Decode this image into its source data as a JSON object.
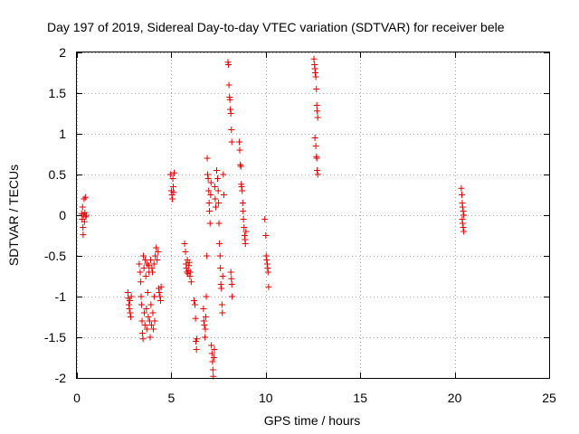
{
  "chart_data": {
    "type": "scatter",
    "title": "Day 197 of 2019, Sidereal Day-to-day VTEC variation (SDTVAR) for receiver bele",
    "xlabel": "GPS time / hours",
    "ylabel": "SDTVAR / TECUs",
    "xlim": [
      0,
      25
    ],
    "ylim": [
      -2,
      2
    ],
    "xticks": [
      0,
      5,
      10,
      15,
      20,
      25
    ],
    "yticks": [
      -2,
      -1.5,
      -1,
      -0.5,
      0,
      0.5,
      1,
      1.5,
      2
    ],
    "xtick_labels": [
      "0",
      "5",
      "10",
      "15",
      "20",
      "25"
    ],
    "ytick_labels": [
      "-2",
      "-1.5",
      "-1",
      "-0.5",
      "0",
      "0.5",
      "1",
      "1.5",
      "2"
    ],
    "grid": true,
    "marker": "+",
    "series": [
      {
        "name": "SDTVAR",
        "color": "#e00000",
        "points": [
          [
            0.25,
            0.02
          ],
          [
            0.28,
            -0.05
          ],
          [
            0.3,
            0.1
          ],
          [
            0.32,
            -0.15
          ],
          [
            0.33,
            -0.24
          ],
          [
            0.35,
            0.0
          ],
          [
            0.38,
            0.2
          ],
          [
            0.4,
            -0.08
          ],
          [
            0.42,
            0.03
          ],
          [
            0.45,
            0.22
          ],
          [
            0.47,
            -0.02
          ],
          [
            0.5,
            0.0
          ],
          [
            2.7,
            -0.95
          ],
          [
            2.72,
            -1.02
          ],
          [
            2.75,
            -1.1
          ],
          [
            2.78,
            -1.15
          ],
          [
            2.8,
            -1.05
          ],
          [
            2.82,
            -1.2
          ],
          [
            2.85,
            -1.25
          ],
          [
            2.88,
            -1.0
          ],
          [
            3.3,
            -0.6
          ],
          [
            3.35,
            -0.7
          ],
          [
            3.38,
            -0.82
          ],
          [
            3.4,
            -1.0
          ],
          [
            3.42,
            -1.1
          ],
          [
            3.45,
            -1.3
          ],
          [
            3.47,
            -1.45
          ],
          [
            3.5,
            -1.52
          ],
          [
            3.52,
            -0.5
          ],
          [
            3.55,
            -0.65
          ],
          [
            3.57,
            -1.2
          ],
          [
            3.6,
            -1.35
          ],
          [
            3.62,
            -0.55
          ],
          [
            3.65,
            -0.75
          ],
          [
            3.68,
            -1.15
          ],
          [
            3.7,
            -1.4
          ],
          [
            3.72,
            -0.6
          ],
          [
            3.75,
            -0.95
          ],
          [
            3.78,
            -1.25
          ],
          [
            3.8,
            -0.62
          ],
          [
            3.82,
            -0.7
          ],
          [
            3.85,
            -1.3
          ],
          [
            3.88,
            -1.5
          ],
          [
            3.9,
            -0.55
          ],
          [
            3.92,
            -1.1
          ],
          [
            3.95,
            -1.35
          ],
          [
            3.97,
            -0.65
          ],
          [
            4.0,
            -0.7
          ],
          [
            4.02,
            -1.2
          ],
          [
            4.05,
            -1.4
          ],
          [
            4.08,
            -0.6
          ],
          [
            4.1,
            -1.0
          ],
          [
            4.12,
            -1.3
          ],
          [
            4.15,
            -0.5
          ],
          [
            4.2,
            -0.4
          ],
          [
            4.25,
            -0.55
          ],
          [
            4.3,
            -0.45
          ],
          [
            4.33,
            -0.9
          ],
          [
            4.36,
            -0.95
          ],
          [
            4.4,
            -1.0
          ],
          [
            4.43,
            -1.05
          ],
          [
            4.46,
            -0.88
          ],
          [
            4.95,
            0.5
          ],
          [
            5.0,
            0.3
          ],
          [
            5.03,
            0.25
          ],
          [
            5.05,
            0.2
          ],
          [
            5.08,
            0.45
          ],
          [
            5.1,
            0.35
          ],
          [
            5.12,
            0.28
          ],
          [
            5.15,
            0.52
          ],
          [
            5.7,
            -0.35
          ],
          [
            5.75,
            -0.45
          ],
          [
            5.78,
            -0.6
          ],
          [
            5.8,
            -0.65
          ],
          [
            5.83,
            -0.7
          ],
          [
            5.85,
            -0.55
          ],
          [
            5.88,
            -0.72
          ],
          [
            5.9,
            -0.68
          ],
          [
            5.93,
            -0.62
          ],
          [
            5.95,
            -0.58
          ],
          [
            5.98,
            -0.75
          ],
          [
            6.0,
            -0.7
          ],
          [
            6.05,
            -0.82
          ],
          [
            6.2,
            -1.05
          ],
          [
            6.25,
            -1.1
          ],
          [
            6.28,
            -1.27
          ],
          [
            6.3,
            -1.55
          ],
          [
            6.33,
            -1.65
          ],
          [
            6.35,
            -1.52
          ],
          [
            6.7,
            -1.15
          ],
          [
            6.72,
            -1.3
          ],
          [
            6.75,
            -1.35
          ],
          [
            6.78,
            -1.5
          ],
          [
            6.8,
            -1.4
          ],
          [
            6.82,
            -1.25
          ],
          [
            6.85,
            -1.0
          ],
          [
            6.88,
            -0.5
          ],
          [
            6.9,
            0.7
          ],
          [
            6.92,
            0.5
          ],
          [
            6.95,
            0.45
          ],
          [
            6.98,
            0.3
          ],
          [
            7.0,
            0.15
          ],
          [
            7.02,
            0.05
          ],
          [
            7.05,
            -0.1
          ],
          [
            7.08,
            0.25
          ],
          [
            7.1,
            0.4
          ],
          [
            7.12,
            -1.6
          ],
          [
            7.15,
            -1.7
          ],
          [
            7.18,
            -1.8
          ],
          [
            7.2,
            -1.9
          ],
          [
            7.22,
            -1.98
          ],
          [
            7.25,
            -1.75
          ],
          [
            7.28,
            -1.65
          ],
          [
            7.3,
            0.35
          ],
          [
            7.32,
            0.2
          ],
          [
            7.35,
            0.1
          ],
          [
            7.4,
            0.55
          ],
          [
            7.45,
            0.45
          ],
          [
            7.48,
            0.3
          ],
          [
            7.5,
            0.15
          ],
          [
            7.52,
            -0.1
          ],
          [
            7.55,
            -0.35
          ],
          [
            7.58,
            -0.5
          ],
          [
            7.6,
            -0.65
          ],
          [
            7.62,
            -0.85
          ],
          [
            7.65,
            -0.9
          ],
          [
            7.68,
            -1.1
          ],
          [
            7.7,
            -1.2
          ],
          [
            7.72,
            -0.75
          ],
          [
            7.75,
            0.5
          ],
          [
            7.78,
            0.25
          ],
          [
            8.0,
            1.88
          ],
          [
            8.02,
            1.85
          ],
          [
            8.05,
            1.6
          ],
          [
            8.08,
            1.45
          ],
          [
            8.1,
            1.42
          ],
          [
            8.12,
            1.3
          ],
          [
            8.15,
            1.25
          ],
          [
            8.18,
            1.05
          ],
          [
            8.2,
            0.9
          ],
          [
            8.15,
            -0.7
          ],
          [
            8.18,
            -0.78
          ],
          [
            8.2,
            -0.85
          ],
          [
            8.22,
            -1.0
          ],
          [
            8.6,
            0.9
          ],
          [
            8.62,
            0.8
          ],
          [
            8.65,
            0.62
          ],
          [
            8.68,
            0.6
          ],
          [
            8.7,
            0.38
          ],
          [
            8.72,
            0.35
          ],
          [
            8.75,
            0.3
          ],
          [
            8.78,
            0.15
          ],
          [
            8.8,
            0.05
          ],
          [
            8.82,
            -0.05
          ],
          [
            8.85,
            -0.15
          ],
          [
            8.88,
            -0.25
          ],
          [
            8.9,
            -0.3
          ],
          [
            8.92,
            -0.35
          ],
          [
            8.95,
            -0.2
          ],
          [
            9.95,
            -0.05
          ],
          [
            10.0,
            -0.25
          ],
          [
            10.02,
            -0.5
          ],
          [
            10.05,
            -0.55
          ],
          [
            10.08,
            -0.6
          ],
          [
            10.1,
            -0.65
          ],
          [
            10.12,
            -0.7
          ],
          [
            10.15,
            -0.88
          ],
          [
            12.55,
            1.92
          ],
          [
            12.58,
            1.85
          ],
          [
            12.6,
            1.8
          ],
          [
            12.62,
            1.75
          ],
          [
            12.65,
            1.7
          ],
          [
            12.68,
            1.55
          ],
          [
            12.7,
            1.35
          ],
          [
            12.72,
            1.28
          ],
          [
            12.75,
            1.2
          ],
          [
            12.6,
            0.95
          ],
          [
            12.65,
            0.85
          ],
          [
            12.68,
            0.72
          ],
          [
            12.7,
            0.7
          ],
          [
            12.72,
            0.55
          ],
          [
            12.75,
            0.5
          ],
          [
            20.35,
            0.33
          ],
          [
            20.38,
            0.25
          ],
          [
            20.4,
            0.15
          ],
          [
            20.42,
            0.1
          ],
          [
            20.45,
            0.05
          ],
          [
            20.48,
            0.0
          ],
          [
            20.4,
            -0.05
          ],
          [
            20.42,
            -0.1
          ],
          [
            20.45,
            -0.15
          ],
          [
            20.48,
            -0.2
          ]
        ]
      }
    ]
  }
}
